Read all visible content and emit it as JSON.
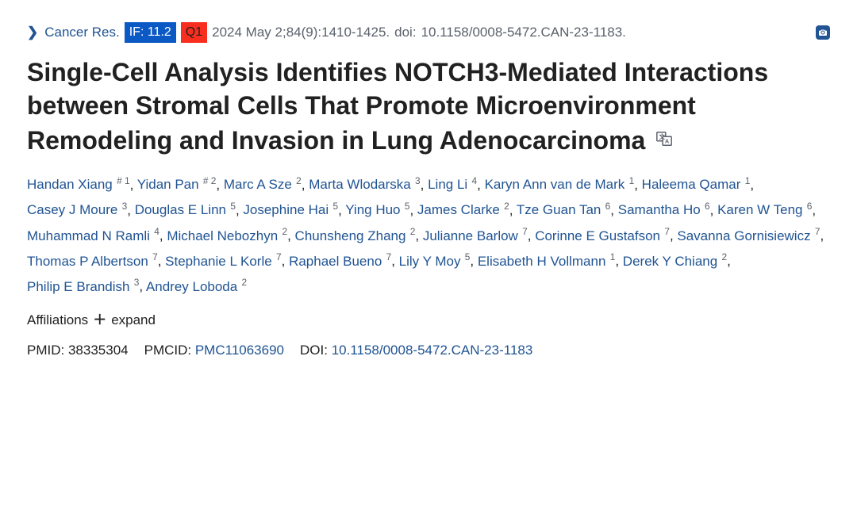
{
  "colors": {
    "link": "#205493",
    "muted": "#5b616b",
    "text": "#212121",
    "if_bg": "#0b59c4",
    "q_bg": "#f82e1f",
    "bg": "#ffffff"
  },
  "meta": {
    "chevron": "❯",
    "journal": "Cancer Res.",
    "if_label": "IF: 11.2",
    "quartile": "Q1",
    "citation": "2024 May 2;84(9):1410-1425.",
    "doi_prefix": "doi:",
    "doi_text": "10.1158/0008-5472.CAN-23-1183."
  },
  "title": "Single-Cell Analysis Identifies NOTCH3-Mediated Interactions between Stromal Cells That Promote Microenvironment Remodeling and Invasion in Lung Adenocarcinoma",
  "authors": [
    {
      "name": "Handan Xiang",
      "sup": "# 1"
    },
    {
      "name": "Yidan Pan",
      "sup": "# 2"
    },
    {
      "name": "Marc A Sze",
      "sup": "2"
    },
    {
      "name": "Marta Wlodarska",
      "sup": "3"
    },
    {
      "name": "Ling Li",
      "sup": "4"
    },
    {
      "name": "Karyn Ann van de Mark",
      "sup": "1"
    },
    {
      "name": "Haleema Qamar",
      "sup": "1"
    },
    {
      "name": "Casey J Moure",
      "sup": "3"
    },
    {
      "name": "Douglas E Linn",
      "sup": "5"
    },
    {
      "name": "Josephine Hai",
      "sup": "5"
    },
    {
      "name": "Ying Huo",
      "sup": "5"
    },
    {
      "name": "James Clarke",
      "sup": "2"
    },
    {
      "name": "Tze Guan Tan",
      "sup": "6"
    },
    {
      "name": "Samantha Ho",
      "sup": "6"
    },
    {
      "name": "Karen W Teng",
      "sup": "6"
    },
    {
      "name": "Muhammad N Ramli",
      "sup": "4"
    },
    {
      "name": "Michael Nebozhyn",
      "sup": "2"
    },
    {
      "name": "Chunsheng Zhang",
      "sup": "2"
    },
    {
      "name": "Julianne Barlow",
      "sup": "7"
    },
    {
      "name": "Corinne E Gustafson",
      "sup": "7"
    },
    {
      "name": "Savanna Gornisiewicz",
      "sup": "7"
    },
    {
      "name": "Thomas P Albertson",
      "sup": "7"
    },
    {
      "name": "Stephanie L Korle",
      "sup": "7"
    },
    {
      "name": "Raphael Bueno",
      "sup": "7"
    },
    {
      "name": "Lily Y Moy",
      "sup": "5"
    },
    {
      "name": "Elisabeth H Vollmann",
      "sup": "1"
    },
    {
      "name": "Derek Y Chiang",
      "sup": "2"
    },
    {
      "name": "Philip E Brandish",
      "sup": "3"
    },
    {
      "name": "Andrey Loboda",
      "sup": "2"
    }
  ],
  "aff": {
    "label": "Affiliations",
    "expand": "expand"
  },
  "ids": {
    "pmid_label": "PMID:",
    "pmid": "38335304",
    "pmcid_label": "PMCID:",
    "pmcid": "PMC11063690",
    "doi_label": "DOI:",
    "doi": "10.1158/0008-5472.CAN-23-1183"
  }
}
